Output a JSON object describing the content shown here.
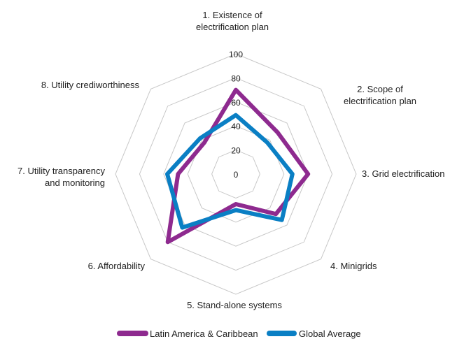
{
  "chart_data": {
    "type": "radar",
    "categories": [
      [
        "1. Existence of",
        "electrification plan"
      ],
      [
        "2. Scope of",
        "electrification plan"
      ],
      [
        "3. Grid electrification"
      ],
      [
        "4. Minigrids"
      ],
      [
        "5. Stand-alone systems"
      ],
      [
        "6. Affordability"
      ],
      [
        "7. Utility transparency",
        "and monitoring"
      ],
      [
        "8. Utility crediworthiness"
      ]
    ],
    "ticks": [
      "0",
      "20",
      "40",
      "60",
      "80",
      "100"
    ],
    "rlim": [
      0,
      100
    ],
    "grid": true,
    "legend_position": "bottom",
    "series": [
      {
        "name": "Latin America & Caribbean",
        "color": "#8e2a8f",
        "values": [
          70,
          49,
          60,
          47,
          25,
          80,
          48,
          37
        ]
      },
      {
        "name": "Global Average",
        "color": "#0a7fc4",
        "values": [
          49,
          37,
          47,
          54,
          30,
          63,
          57,
          42
        ]
      }
    ]
  }
}
